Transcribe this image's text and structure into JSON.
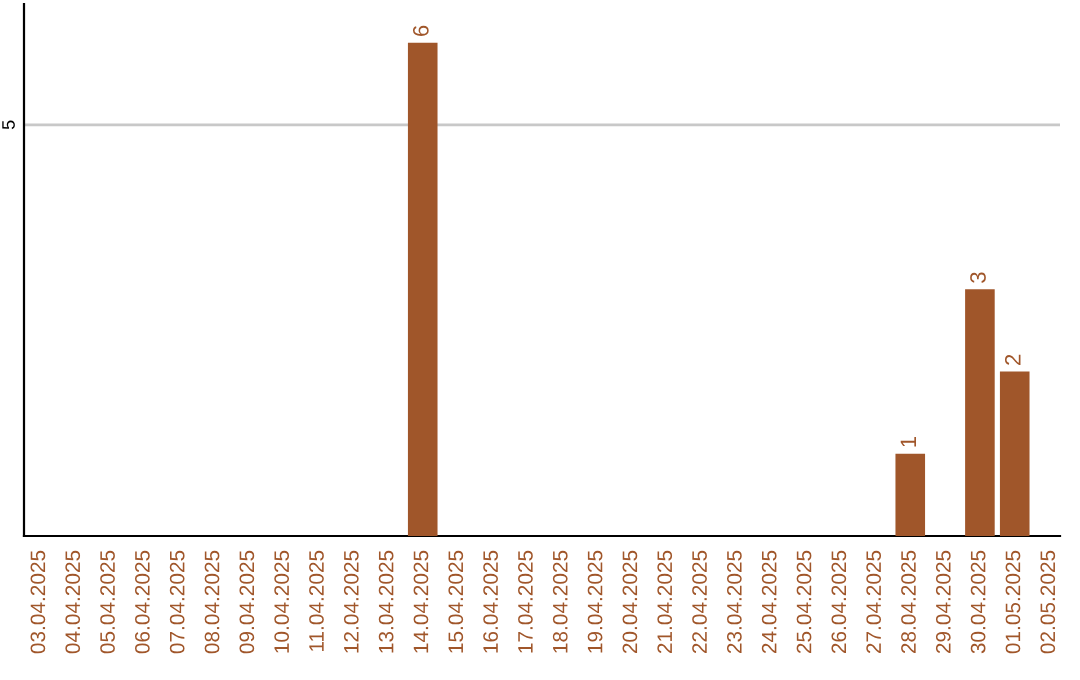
{
  "chart_data": {
    "type": "bar",
    "categories": [
      "03.04.2025",
      "04.04.2025",
      "05.04.2025",
      "06.04.2025",
      "07.04.2025",
      "08.04.2025",
      "09.04.2025",
      "10.04.2025",
      "11.04.2025",
      "12.04.2025",
      "13.04.2025",
      "14.04.2025",
      "15.04.2025",
      "16.04.2025",
      "17.04.2025",
      "18.04.2025",
      "19.04.2025",
      "20.04.2025",
      "21.04.2025",
      "22.04.2025",
      "23.04.2025",
      "24.04.2025",
      "25.04.2025",
      "26.04.2025",
      "27.04.2025",
      "28.04.2025",
      "29.04.2025",
      "30.04.2025",
      "01.05.2025",
      "02.05.2025"
    ],
    "values": [
      0,
      0,
      0,
      0,
      0,
      0,
      0,
      0,
      0,
      0,
      0,
      6,
      0,
      0,
      0,
      0,
      0,
      0,
      0,
      0,
      0,
      0,
      0,
      0,
      0,
      1,
      0,
      3,
      2,
      0
    ],
    "value_labels": [
      null,
      null,
      null,
      null,
      null,
      null,
      null,
      null,
      null,
      null,
      null,
      "6",
      null,
      null,
      null,
      null,
      null,
      null,
      null,
      null,
      null,
      null,
      null,
      null,
      null,
      "1",
      null,
      "3",
      "2",
      null
    ],
    "color": "#a0562a",
    "ylim": [
      0,
      6.47
    ],
    "yticks": [
      5
    ],
    "grid": "y"
  }
}
